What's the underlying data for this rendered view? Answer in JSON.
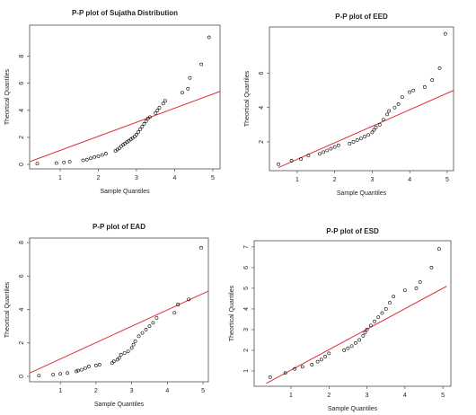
{
  "chart_data": [
    {
      "type": "scatter",
      "title": "P-P plot of Sujatha Distribution",
      "x_label": "Sample Quantiles",
      "y_label": "Theortical Quantiles",
      "color": "#000000",
      "x": [
        0.4,
        0.9,
        1.1,
        1.25,
        1.6,
        1.7,
        1.8,
        1.9,
        2.0,
        2.1,
        2.2,
        2.45,
        2.5,
        2.55,
        2.6,
        2.65,
        2.7,
        2.75,
        2.8,
        2.85,
        2.9,
        2.95,
        3.0,
        3.05,
        3.1,
        3.15,
        3.2,
        3.25,
        3.3,
        3.35,
        3.5,
        3.55,
        3.6,
        3.7,
        3.75,
        4.2,
        4.35,
        4.4,
        4.7,
        4.9
      ],
      "values": [
        0.05,
        0.1,
        0.15,
        0.2,
        0.3,
        0.35,
        0.45,
        0.55,
        0.6,
        0.7,
        0.8,
        1.0,
        1.1,
        1.2,
        1.35,
        1.45,
        1.55,
        1.65,
        1.75,
        1.85,
        1.95,
        2.05,
        2.2,
        2.4,
        2.6,
        2.8,
        3.0,
        3.2,
        3.4,
        3.5,
        3.8,
        4.0,
        4.2,
        4.5,
        4.7,
        5.3,
        5.6,
        6.4,
        7.4,
        9.4
      ],
      "reference_line": {
        "color": "#e0303c",
        "x": [
          0.2,
          5.19
        ],
        "values": [
          0.2,
          5.4
        ]
      },
      "xlim": [
        0.2,
        5.19
      ],
      "ylim": [
        -0.33,
        10.3
      ],
      "xticks": [
        1,
        2,
        3,
        4,
        5
      ],
      "yticks": [
        0,
        2,
        4,
        6,
        8
      ]
    },
    {
      "type": "scatter",
      "title": "P-P plot of EED",
      "x_label": "Sample Quantiles",
      "y_label": "Theortical Quantiles",
      "color": "#000000",
      "x": [
        0.5,
        0.85,
        1.1,
        1.3,
        1.6,
        1.7,
        1.8,
        1.9,
        2.0,
        2.1,
        2.4,
        2.5,
        2.6,
        2.7,
        2.8,
        2.9,
        3.0,
        3.05,
        3.1,
        3.2,
        3.3,
        3.4,
        3.45,
        3.6,
        3.7,
        3.8,
        4.0,
        4.1,
        4.4,
        4.6,
        4.8,
        4.95
      ],
      "values": [
        0.7,
        0.9,
        1.0,
        1.2,
        1.3,
        1.4,
        1.5,
        1.6,
        1.7,
        1.8,
        1.9,
        2.0,
        2.1,
        2.2,
        2.3,
        2.4,
        2.55,
        2.7,
        2.85,
        3.0,
        3.3,
        3.6,
        3.8,
        4.0,
        4.2,
        4.6,
        4.9,
        5.0,
        5.2,
        5.6,
        6.3,
        8.3
      ],
      "reference_line": {
        "color": "#e0303c",
        "x": [
          0.5,
          5.17
        ],
        "values": [
          0.5,
          5.0
        ]
      },
      "xlim": [
        0.26,
        5.17
      ],
      "ylim": [
        0.32,
        8.7
      ],
      "xticks": [
        1,
        2,
        3,
        4,
        5
      ],
      "yticks": [
        2,
        4,
        6
      ]
    },
    {
      "type": "scatter",
      "title": "P-P plot of EAD",
      "x_label": "Sample Quantiles",
      "y_label": "Theortical Quantiles",
      "color": "#000000",
      "x": [
        0.4,
        0.8,
        1.0,
        1.2,
        1.45,
        1.5,
        1.6,
        1.7,
        1.8,
        2.0,
        2.1,
        2.45,
        2.5,
        2.6,
        2.65,
        2.7,
        2.8,
        2.9,
        3.0,
        3.05,
        3.1,
        3.2,
        3.3,
        3.4,
        3.5,
        3.6,
        3.7,
        4.2,
        4.3,
        4.6,
        4.95
      ],
      "values": [
        0.05,
        0.1,
        0.15,
        0.2,
        0.3,
        0.35,
        0.4,
        0.5,
        0.6,
        0.65,
        0.7,
        0.8,
        0.9,
        1.0,
        1.1,
        1.3,
        1.4,
        1.5,
        1.7,
        1.9,
        2.1,
        2.4,
        2.6,
        2.8,
        3.0,
        3.2,
        3.5,
        3.8,
        4.3,
        4.6,
        7.7
      ],
      "reference_line": {
        "color": "#e0303c",
        "x": [
          0.14,
          5.15
        ],
        "values": [
          0.2,
          5.1
        ]
      },
      "xlim": [
        0.14,
        5.15
      ],
      "ylim": [
        -0.32,
        8.27
      ],
      "xticks": [
        1,
        2,
        3,
        4,
        5
      ],
      "yticks": [
        0,
        2,
        4,
        6,
        8
      ]
    },
    {
      "type": "scatter",
      "title": "P-P plot of ESD",
      "x_label": "Sample Quantiles",
      "y_label": "Theortical Quantiles",
      "color": "#000000",
      "x": [
        0.45,
        0.85,
        1.1,
        1.3,
        1.55,
        1.7,
        1.8,
        1.9,
        2.0,
        2.4,
        2.5,
        2.6,
        2.7,
        2.8,
        2.9,
        2.95,
        3.0,
        3.1,
        3.2,
        3.3,
        3.4,
        3.5,
        3.6,
        3.7,
        4.0,
        4.3,
        4.4,
        4.7,
        4.9
      ],
      "values": [
        0.7,
        0.9,
        1.1,
        1.2,
        1.3,
        1.45,
        1.55,
        1.7,
        1.85,
        2.0,
        2.1,
        2.2,
        2.35,
        2.5,
        2.7,
        2.85,
        3.0,
        3.2,
        3.4,
        3.6,
        3.8,
        4.0,
        4.3,
        4.6,
        4.9,
        5.0,
        5.3,
        6.0,
        6.9
      ],
      "reference_line": {
        "color": "#e0303c",
        "x": [
          0.35,
          5.1
        ],
        "values": [
          0.4,
          5.1
        ]
      },
      "xlim": [
        0.03,
        5.21
      ],
      "ylim": [
        0.26,
        7.3
      ],
      "xticks": [
        1,
        2,
        3,
        4,
        5
      ],
      "yticks": [
        1,
        2,
        3,
        4,
        5,
        6,
        7
      ]
    }
  ]
}
